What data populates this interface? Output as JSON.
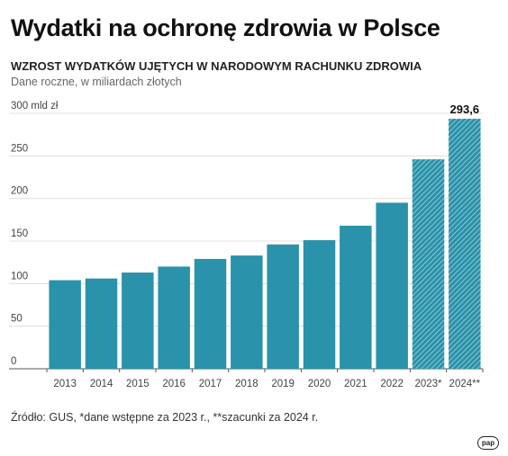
{
  "header": {
    "title": "Wydatki na ochronę zdrowia w Polsce",
    "subtitle": "WZROST WYDATKÓW UJĘTYCH W NARODOWYM RACHUNKU ZDROWIA",
    "description": "Dane roczne, w miliardach złotych"
  },
  "footer": {
    "source": "Źródło: GUS, *dane wstępne za 2023 r., **szacunki za 2024 r.",
    "logo_text": "pap"
  },
  "chart_data": {
    "type": "bar",
    "categories": [
      "2013",
      "2014",
      "2015",
      "2016",
      "2017",
      "2018",
      "2019",
      "2020",
      "2021",
      "2022",
      "2023*",
      "2024**"
    ],
    "values": [
      104,
      106,
      113,
      120,
      129,
      133,
      146,
      151,
      168,
      195,
      246,
      293.6
    ],
    "estimated": [
      false,
      false,
      false,
      false,
      false,
      false,
      false,
      false,
      false,
      false,
      true,
      true
    ],
    "ylim": [
      0,
      300
    ],
    "yticks": [
      0,
      50,
      100,
      150,
      200,
      250,
      300
    ],
    "ytick_labels": [
      "0",
      "50",
      "100",
      "150",
      "200",
      "250",
      "300 mld zł"
    ],
    "data_labels": [
      {
        "category": "2024**",
        "text": "293,6"
      }
    ],
    "bar_color": "#2a92aa",
    "grid": true
  }
}
